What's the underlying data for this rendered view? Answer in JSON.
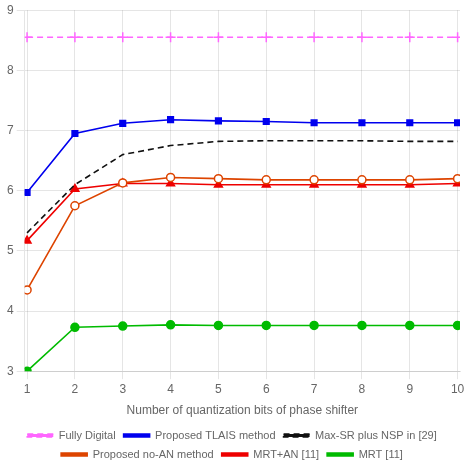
{
  "chart_data": {
    "type": "line",
    "x": [
      1,
      2,
      3,
      4,
      5,
      6,
      7,
      8,
      9,
      10
    ],
    "series": [
      {
        "name": "Fully Digital",
        "color": "#ff66ff",
        "marker": "plus",
        "line_style": "dashed",
        "values": [
          8.55,
          8.55,
          8.55,
          8.55,
          8.55,
          8.55,
          8.55,
          8.55,
          8.55,
          8.55
        ]
      },
      {
        "name": "Proposed TLAIS method",
        "color": "#0000ee",
        "marker": "square",
        "line_style": "solid",
        "values": [
          5.97,
          6.95,
          7.12,
          7.18,
          7.16,
          7.15,
          7.13,
          7.13,
          7.13,
          7.13
        ]
      },
      {
        "name": "Max-SR plus NSP in [29]",
        "color": "#111111",
        "marker": "none",
        "line_style": "dashed",
        "values": [
          5.3,
          6.1,
          6.6,
          6.75,
          6.82,
          6.83,
          6.83,
          6.83,
          6.82,
          6.82
        ]
      },
      {
        "name": "Proposed no-AN method",
        "color": "#dd4400",
        "marker": "open_circle",
        "line_style": "solid",
        "values": [
          4.35,
          5.75,
          6.13,
          6.22,
          6.2,
          6.18,
          6.18,
          6.18,
          6.18,
          6.2
        ]
      },
      {
        "name": "MRT+AN [11]",
        "color": "#ee0000",
        "marker": "triangle",
        "line_style": "solid",
        "values": [
          5.17,
          6.03,
          6.12,
          6.12,
          6.1,
          6.1,
          6.1,
          6.1,
          6.1,
          6.12
        ]
      },
      {
        "name": "MRT [11]",
        "color": "#00bb00",
        "marker": "circle",
        "line_style": "solid",
        "values": [
          3.0,
          3.73,
          3.75,
          3.77,
          3.76,
          3.76,
          3.76,
          3.76,
          3.76,
          3.76
        ]
      }
    ],
    "xlabel": "Number of quantization bits of phase shifter",
    "xlim": [
      0.95,
      10.05
    ],
    "xticks": [
      1,
      2,
      3,
      4,
      5,
      6,
      7,
      8,
      9,
      10
    ],
    "ylim": [
      3.0,
      9.0
    ],
    "yticks": [
      3,
      4,
      5,
      6,
      7,
      8,
      9
    ],
    "grid": true,
    "legend": "bottom"
  }
}
